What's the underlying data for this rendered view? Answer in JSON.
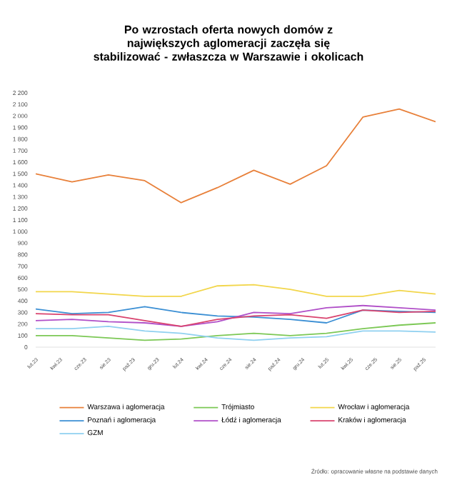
{
  "chart_data": {
    "type": "line",
    "title": "Po wzrostach oferta nowych domów z największych aglomeracji zaczęła się stabilizować - zwłaszcza w Warszawie i okolicach",
    "annotations": [
      "Źródło: opracowanie własne na podstawie danych"
    ],
    "x": [
      "2023-02",
      "2023-05",
      "2023-08",
      "2023-11",
      "2024-02",
      "2024-05",
      "2024-08",
      "2024-11",
      "2025-02",
      "2025-05",
      "2025-08",
      "2025-11"
    ],
    "xlim": [
      "2023-02",
      "2025-11"
    ],
    "xticks": [
      {
        "value": "2023-02",
        "label": "lut.23"
      },
      {
        "value": "2023-04",
        "label": "kwi.23"
      },
      {
        "value": "2023-06",
        "label": "cze.23"
      },
      {
        "value": "2023-08",
        "label": "sie.23"
      },
      {
        "value": "2023-10",
        "label": "paź.23"
      },
      {
        "value": "2023-12",
        "label": "gru.23"
      },
      {
        "value": "2024-02",
        "label": "lut.24"
      },
      {
        "value": "2024-04",
        "label": "kwi.24"
      },
      {
        "value": "2024-06",
        "label": "cze.24"
      },
      {
        "value": "2024-08",
        "label": "sie.24"
      },
      {
        "value": "2024-10",
        "label": "paź.24"
      },
      {
        "value": "2024-12",
        "label": "gru.24"
      },
      {
        "value": "2025-02",
        "label": "lut.25"
      },
      {
        "value": "2025-04",
        "label": "kwi.25"
      },
      {
        "value": "2025-06",
        "label": "cze.25"
      },
      {
        "value": "2025-08",
        "label": "sie.25"
      },
      {
        "value": "2025-10",
        "label": "paź.25"
      }
    ],
    "ylim": [
      0,
      2200
    ],
    "yticks": [
      0,
      100,
      200,
      300,
      400,
      500,
      600,
      700,
      800,
      900,
      {
        "value": 1000,
        "label": "1 000"
      },
      {
        "value": 1100,
        "label": "1 100"
      },
      {
        "value": 1200,
        "label": "1 200"
      },
      {
        "value": 1300,
        "label": "1 300"
      },
      {
        "value": 1400,
        "label": "1 400"
      },
      {
        "value": 1500,
        "label": "1 500"
      },
      {
        "value": 1600,
        "label": "1 600"
      },
      {
        "value": 1700,
        "label": "1 700"
      },
      {
        "value": 1800,
        "label": "1 800"
      },
      {
        "value": 1900,
        "label": "1 900"
      },
      {
        "value": 2000,
        "label": "2 000"
      },
      {
        "value": 2100,
        "label": "2 100"
      },
      {
        "value": 2200,
        "label": "2 200"
      }
    ],
    "legend": "bottom",
    "series": [
      {
        "name": "Warszawa i aglomeracja",
        "color": "#e8803a",
        "values": [
          1500,
          1430,
          1490,
          1440,
          1250,
          1380,
          1530,
          1410,
          1570,
          1990,
          2060,
          1950
        ]
      },
      {
        "name": "Trójmiasto",
        "color": "#7cc855",
        "values": [
          100,
          100,
          80,
          60,
          70,
          100,
          120,
          100,
          120,
          160,
          190,
          210
        ]
      },
      {
        "name": "Wrocław i aglomeracja",
        "color": "#f2d64b",
        "values": [
          480,
          480,
          460,
          440,
          440,
          530,
          540,
          500,
          440,
          440,
          490,
          460
        ]
      },
      {
        "name": "Poznań i aglomeracja",
        "color": "#3b8fd4",
        "values": [
          330,
          290,
          300,
          350,
          300,
          270,
          260,
          240,
          210,
          320,
          310,
          300
        ]
      },
      {
        "name": "Łódź i aglomeracja",
        "color": "#b04fc8",
        "values": [
          230,
          240,
          220,
          210,
          180,
          220,
          300,
          290,
          340,
          360,
          340,
          320
        ]
      },
      {
        "name": "Kraków i aglomeracja",
        "color": "#d9436e",
        "values": [
          290,
          280,
          280,
          230,
          180,
          240,
          270,
          280,
          250,
          320,
          300,
          310
        ]
      },
      {
        "name": "GZM",
        "color": "#8fd0f0",
        "values": [
          160,
          160,
          180,
          140,
          120,
          80,
          60,
          80,
          90,
          140,
          140,
          130
        ]
      }
    ]
  }
}
